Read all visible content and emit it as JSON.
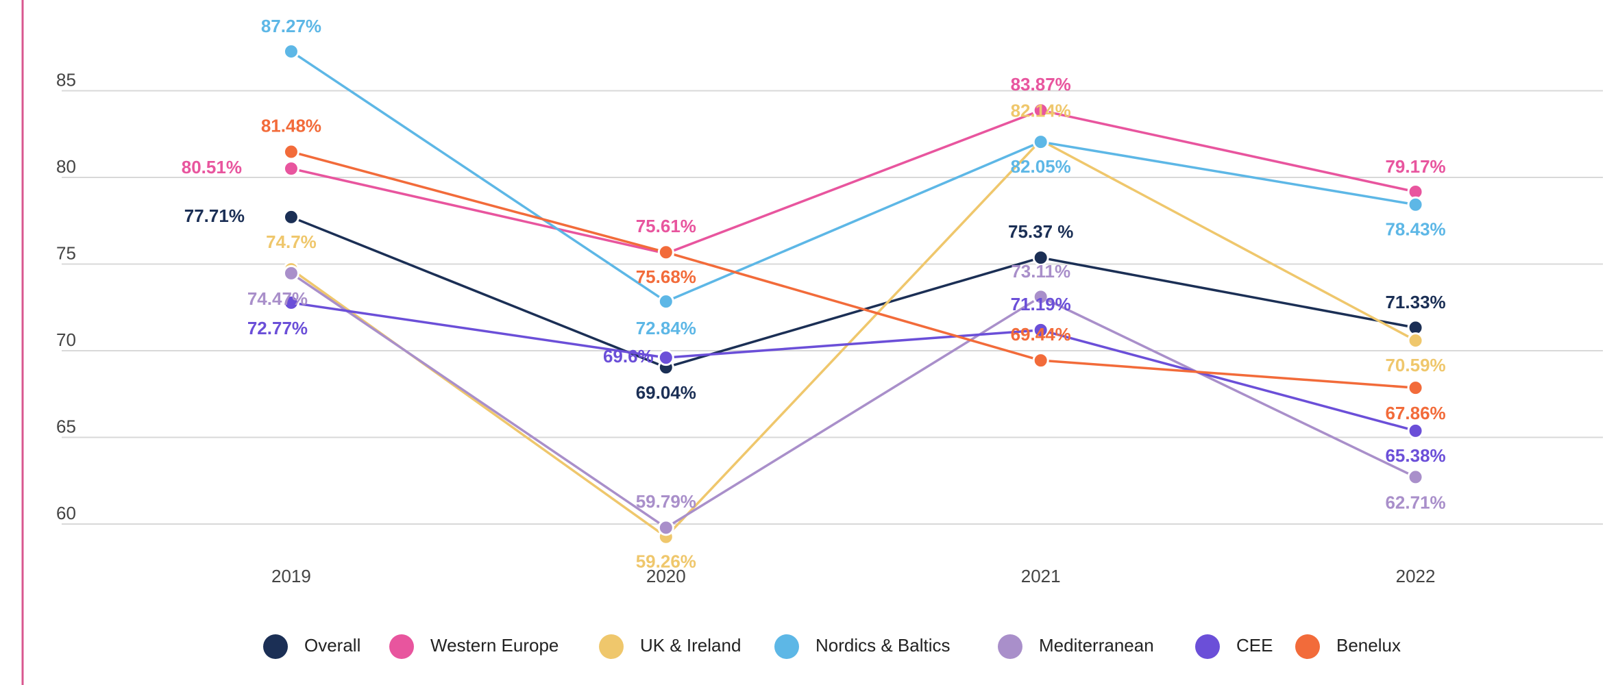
{
  "chart_data": {
    "type": "line",
    "categories": [
      "2019",
      "2020",
      "2021",
      "2022"
    ],
    "ylim": [
      58,
      90
    ],
    "yticks": [
      60,
      65,
      70,
      75,
      80,
      85
    ],
    "grid": true,
    "legend": "bottom",
    "series": [
      {
        "name": "Overall",
        "color": "#1b2f55",
        "values": [
          77.71,
          69.04,
          75.37,
          71.33
        ],
        "value_labels": [
          "77.71%",
          "69.04%",
          "75.37 %",
          "71.33%"
        ]
      },
      {
        "name": "Western Europe",
        "color": "#e8559e",
        "values": [
          80.51,
          75.61,
          83.87,
          79.17
        ],
        "value_labels": [
          "80.51%",
          "75.61%",
          "83.87%",
          "79.17%"
        ]
      },
      {
        "name": "UK & Ireland",
        "color": "#efc76c",
        "values": [
          74.7,
          59.26,
          82.14,
          70.59
        ],
        "value_labels": [
          "74.7%",
          "59.26%",
          "82.14%",
          "70.59%"
        ]
      },
      {
        "name": "Nordics & Baltics",
        "color": "#5db7e6",
        "values": [
          87.27,
          72.84,
          82.05,
          78.43
        ],
        "value_labels": [
          "87.27%",
          "72.84%",
          "82.05%",
          "78.43%"
        ]
      },
      {
        "name": "Mediterranean",
        "color": "#a98fca",
        "values": [
          74.47,
          59.79,
          73.11,
          62.71
        ],
        "value_labels": [
          "74.47%",
          "59.79%",
          "73.11%",
          "62.71%"
        ]
      },
      {
        "name": "CEE",
        "color": "#6b4fd8",
        "values": [
          72.77,
          69.6,
          71.19,
          65.38
        ],
        "value_labels": [
          "72.77%",
          "69.6%",
          "71.19%",
          "65.38%"
        ]
      },
      {
        "name": "Benelux",
        "color": "#f26b3a",
        "values": [
          81.48,
          75.68,
          69.44,
          67.86
        ],
        "value_labels": [
          "81.48%",
          "75.68%",
          "69.44%",
          "67.86%"
        ]
      }
    ]
  }
}
